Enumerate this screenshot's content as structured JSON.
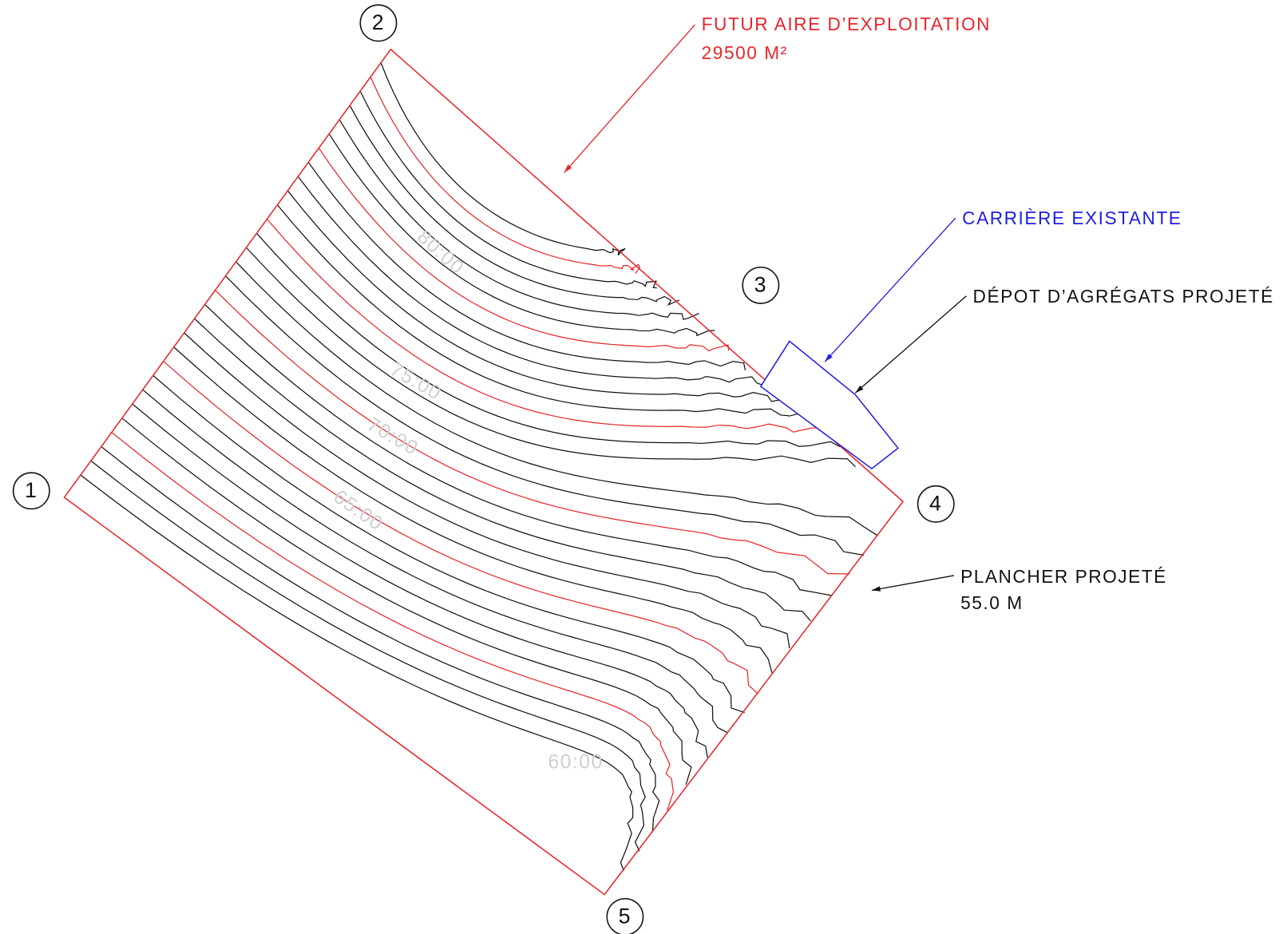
{
  "points": [
    "1",
    "2",
    "3",
    "4",
    "5"
  ],
  "annotations": {
    "future_area": {
      "title": "FUTUR AIRE D’EXPLOITATION",
      "area": "29500 M²"
    },
    "existing_quarry": "CARRIÈRE EXISTANTE",
    "aggregate_depot": "DÉPOT D’AGRÉGATS PROJETÉ",
    "floor": {
      "title": "PLANCHER PROJETÉ",
      "elevation": "55.0 M"
    }
  },
  "contour_labels": [
    "80:00",
    "75:00",
    "70:00",
    "65:00",
    "60:00"
  ]
}
